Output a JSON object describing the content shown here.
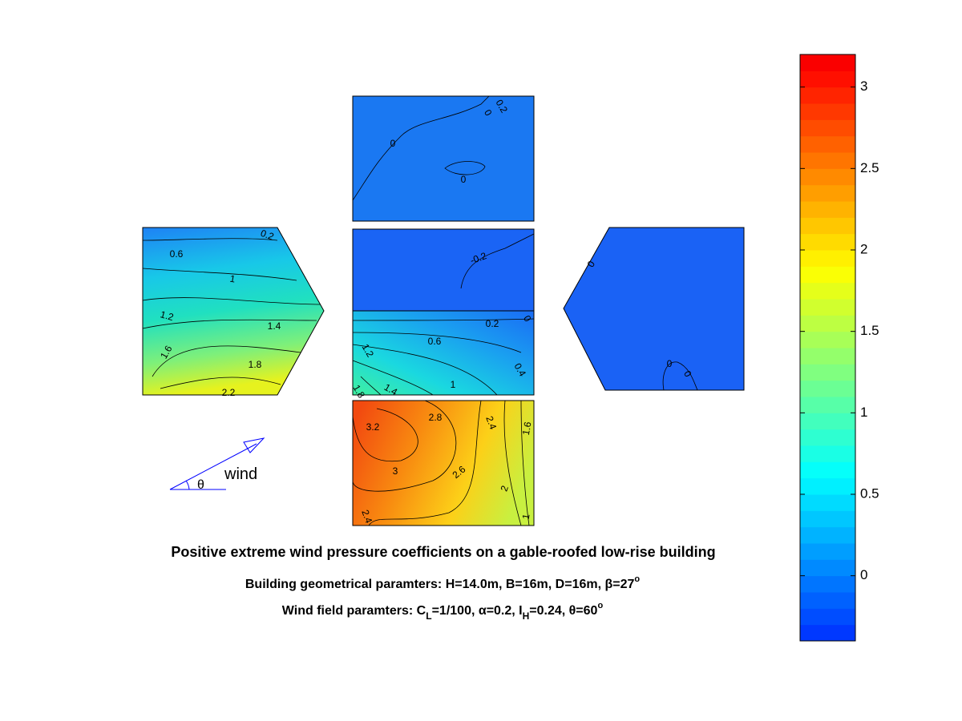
{
  "chart_data": {
    "type": "contour",
    "title": "Positive extreme wind pressure coefficients on a gable-roofed low-rise building",
    "subtitle_parts": [
      "Building geometrical paramters: H=14.0m, B=16m, D=16m, β=27",
      "o"
    ],
    "subtitle2_parts": [
      "Wind field paramters: C",
      "L",
      "=1/100, α=0.2, I",
      "H",
      "=0.24, θ=60",
      "o"
    ],
    "wind_label": "wind",
    "angle_label": "θ",
    "colorbar": {
      "clim": [
        -0.4,
        3.2
      ],
      "ticks": [
        0,
        0.5,
        1,
        1.5,
        2,
        2.5,
        3
      ]
    },
    "panels": [
      {
        "contour_labels": [
          0.2,
          0,
          0,
          0
        ]
      },
      {
        "contour_labels": [
          0.2,
          0.6,
          1,
          1.2,
          1.4,
          1.6,
          1.8,
          2.2
        ]
      },
      {
        "contour_labels": [
          -0.2
        ]
      },
      {
        "contour_labels": [
          0.2,
          0,
          0.6,
          0.4,
          1.2,
          1,
          1.4,
          1.8
        ]
      },
      {
        "contour_labels": [
          0,
          0,
          0
        ]
      },
      {
        "contour_labels": [
          3.2,
          2.8,
          2.4,
          1.6,
          3,
          2.6,
          2,
          2.4,
          1
        ]
      }
    ]
  }
}
